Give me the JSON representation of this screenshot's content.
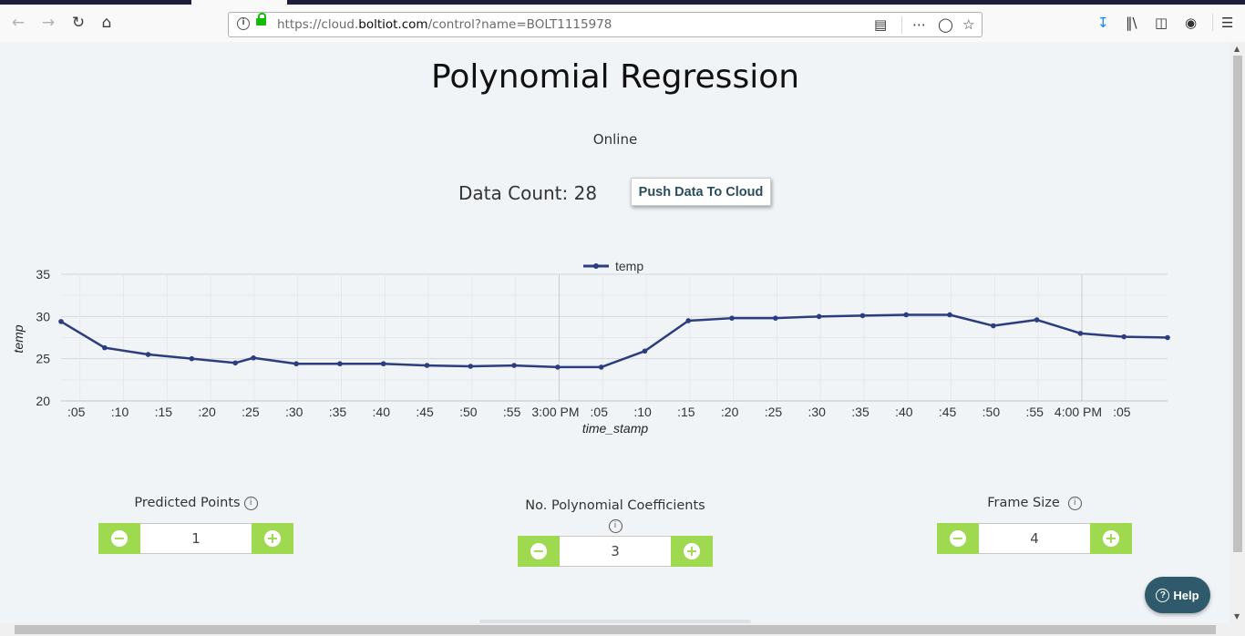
{
  "browser": {
    "url_prefix": "https://cloud.",
    "url_domain": "boltiot.com",
    "url_path": "/control?name=BOLT1115978"
  },
  "page": {
    "title": "Polynomial Regression",
    "status": "Online",
    "data_count": "Data Count: 28",
    "push_button": "Push Data To Cloud"
  },
  "controls": {
    "predicted_points": {
      "label": "Predicted Points",
      "value": "1"
    },
    "poly_coeffs": {
      "label": "No. Polynomial Coefficients",
      "value": "3"
    },
    "frame_size": {
      "label": "Frame Size",
      "value": "4"
    }
  },
  "help_label": "Help",
  "chart_data": {
    "type": "line",
    "legend": "temp",
    "legend_position": "top-center",
    "xlabel": "time_stamp",
    "ylabel": "temp",
    "ylim": [
      20,
      35
    ],
    "yticks": [
      20,
      25,
      30,
      35
    ],
    "xticks": [
      ":05",
      ":10",
      ":15",
      ":20",
      ":25",
      ":30",
      ":35",
      ":40",
      ":45",
      ":50",
      ":55",
      "3:00 PM",
      ":05",
      ":10",
      ":15",
      ":20",
      ":25",
      ":30",
      ":35",
      ":40",
      ":45",
      ":50",
      ":55",
      "4:00 PM",
      ":05"
    ],
    "grid": true,
    "color": "#2b3d7f",
    "series": [
      {
        "name": "temp",
        "x": [
          "2:02:50 PM",
          "2:07:50 PM",
          "2:12:50 PM",
          "2:17:50 PM",
          "2:22:50 PM",
          "2:24:55 PM",
          "2:29:50 PM",
          "2:34:50 PM",
          "2:39:50 PM",
          "2:44:50 PM",
          "2:49:50 PM",
          "2:54:50 PM",
          "2:59:50 PM",
          "3:04:50 PM",
          "3:09:50 PM",
          "3:14:50 PM",
          "3:19:50 PM",
          "3:24:50 PM",
          "3:29:50 PM",
          "3:34:50 PM",
          "3:39:50 PM",
          "3:44:50 PM",
          "3:49:50 PM",
          "3:54:50 PM",
          "3:59:50 PM",
          "4:04:50 PM",
          "4:09:50 PM"
        ],
        "values": [
          29.4,
          26.3,
          25.5,
          25.0,
          24.5,
          25.1,
          24.4,
          24.4,
          24.4,
          24.2,
          24.1,
          24.2,
          24.0,
          24.0,
          25.9,
          29.5,
          29.8,
          29.8,
          30.0,
          30.1,
          30.2,
          30.2,
          28.9,
          29.6,
          28.0,
          27.6,
          27.5
        ]
      }
    ]
  }
}
